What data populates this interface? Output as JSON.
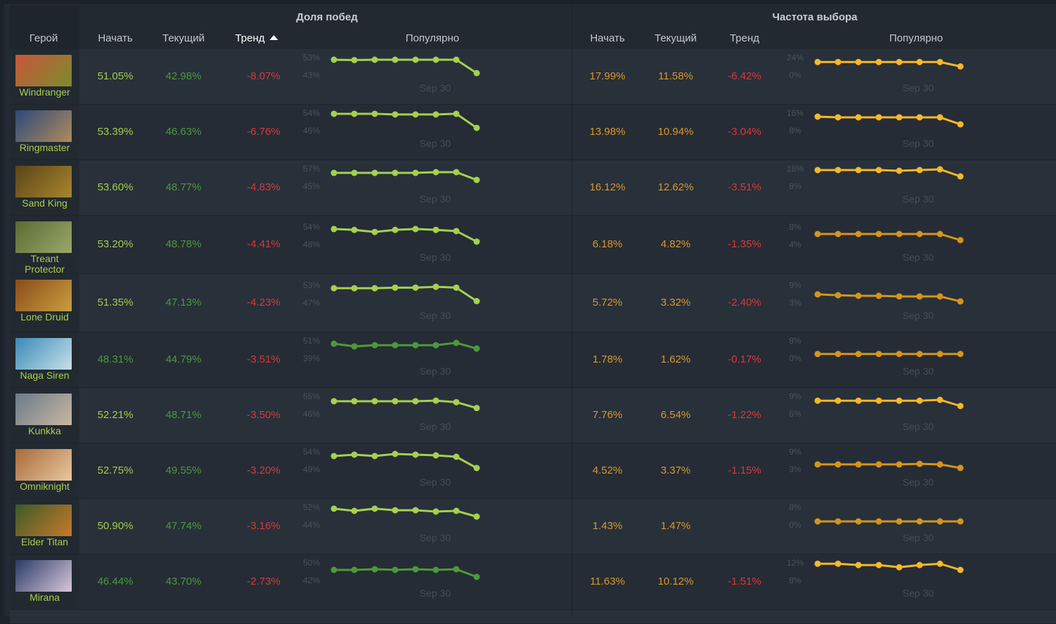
{
  "header": {
    "hero": "Герой",
    "winrate_group": "Доля побед",
    "pickrate_group": "Частота выбора",
    "start": "Начать",
    "current": "Текущий",
    "trend": "Тренд",
    "popular": "Популярно"
  },
  "colors": {
    "win_high": "#a3cc4b",
    "win_low": "#4b9a3a",
    "pick": "#d9982b",
    "trend_neg": "#d6393b",
    "spark_bright": "#f5b829",
    "spark_dark": "#d4951c",
    "line_bright": "#a6d04f",
    "line_dark": "#4b9a3a"
  },
  "sparkline_date": "Sep 30",
  "heroes": [
    {
      "name": "Windranger",
      "avatar": [
        "#c9563a",
        "#7c8b2e"
      ],
      "win": {
        "start": "51.05%",
        "current": "42.98%",
        "trend": "-8.07%",
        "ymax": "53%",
        "ymid": "43%",
        "max": 53,
        "mid": 43,
        "points": [
          51.8,
          51.6,
          51.8,
          51.8,
          51.8,
          51.8,
          51.8,
          44.2
        ]
      },
      "pick": {
        "start": "17.99%",
        "current": "11.58%",
        "trend": "-6.42%",
        "ymax": "24%",
        "ymid": "0%",
        "max": 24,
        "mid": 0,
        "points": [
          18,
          18,
          18,
          18,
          18,
          18,
          18,
          12
        ]
      },
      "startHigh": true,
      "pickBright": true
    },
    {
      "name": "Ringmaster",
      "avatar": [
        "#2a4a7a",
        "#b08a5c"
      ],
      "win": {
        "start": "53.39%",
        "current": "46.63%",
        "trend": "-6.76%",
        "ymax": "54%",
        "ymid": "46%",
        "max": 54,
        "mid": 46,
        "points": [
          53.7,
          53.7,
          53.7,
          53.4,
          53.4,
          53.4,
          53.7,
          47.3
        ]
      },
      "pick": {
        "start": "13.98%",
        "current": "10.94%",
        "trend": "-3.04%",
        "ymax": "16%",
        "ymid": "8%",
        "max": 16,
        "mid": 8,
        "points": [
          14.4,
          14.1,
          14.1,
          14.1,
          14.1,
          14.1,
          14.1,
          10.9
        ]
      },
      "startHigh": true,
      "pickBright": true
    },
    {
      "name": "Sand King",
      "avatar": [
        "#5a4418",
        "#a8862e"
      ],
      "win": {
        "start": "53.60%",
        "current": "48.77%",
        "trend": "-4.83%",
        "ymax": "57%",
        "ymid": "45%",
        "max": 57,
        "mid": 45,
        "points": [
          54.1,
          54.1,
          54.1,
          54.1,
          54.1,
          54.6,
          54.6,
          49.3
        ]
      },
      "pick": {
        "start": "16.12%",
        "current": "12.62%",
        "trend": "-3.51%",
        "ymax": "18%",
        "ymid": "8%",
        "max": 18,
        "mid": 8,
        "points": [
          17.2,
          17.2,
          17.2,
          17.2,
          16.8,
          17.2,
          17.6,
          13.6
        ]
      },
      "startHigh": true,
      "pickBright": true
    },
    {
      "name": "Treant Protector",
      "avatar": [
        "#5a6a32",
        "#9aa86a"
      ],
      "win": {
        "start": "53.20%",
        "current": "48.78%",
        "trend": "-4.41%",
        "ymax": "54%",
        "ymid": "48%",
        "max": 54,
        "mid": 48,
        "points": [
          53.3,
          53,
          52.3,
          53,
          53.3,
          53,
          52.6,
          49
        ]
      },
      "pick": {
        "start": "6.18%",
        "current": "4.82%",
        "trend": "-1.35%",
        "ymax": "8%",
        "ymid": "4%",
        "max": 8,
        "mid": 4,
        "points": [
          6.4,
          6.4,
          6.4,
          6.4,
          6.4,
          6.4,
          6.4,
          5
        ]
      },
      "startHigh": true,
      "pickBright": false,
      "tall": true
    },
    {
      "name": "Lone Druid",
      "avatar": [
        "#8a4a18",
        "#c8a040"
      ],
      "win": {
        "start": "51.35%",
        "current": "47.13%",
        "trend": "-4.23%",
        "ymax": "53%",
        "ymid": "47%",
        "max": 53,
        "mid": 47,
        "points": [
          52,
          52,
          52,
          52.2,
          52.2,
          52.5,
          52.2,
          47.6
        ]
      },
      "pick": {
        "start": "5.72%",
        "current": "3.32%",
        "trend": "-2.40%",
        "ymax": "9%",
        "ymid": "3%",
        "max": 9,
        "mid": 3,
        "points": [
          5.9,
          5.6,
          5.4,
          5.4,
          5.2,
          5.2,
          5.2,
          3.5
        ]
      },
      "startHigh": true,
      "pickBright": false,
      "tall": true
    },
    {
      "name": "Naga Siren",
      "avatar": [
        "#3a8ab8",
        "#c8e0e8"
      ],
      "win": {
        "start": "48.31%",
        "current": "44.79%",
        "trend": "-3.51%",
        "ymax": "51%",
        "ymid": "39%",
        "max": 51,
        "mid": 39,
        "points": [
          49,
          47.2,
          48,
          48,
          48,
          48,
          49.6,
          45.7
        ]
      },
      "pick": {
        "start": "1.78%",
        "current": "1.62%",
        "trend": "-0.17%",
        "ymax": "8%",
        "ymid": "0%",
        "max": 8,
        "mid": 0,
        "points": [
          2,
          2,
          2,
          2,
          2,
          2,
          2,
          2
        ]
      },
      "startHigh": false,
      "pickBright": false
    },
    {
      "name": "Kunkka",
      "avatar": [
        "#6a7a8a",
        "#c8b8a0"
      ],
      "win": {
        "start": "52.21%",
        "current": "48.71%",
        "trend": "-3.50%",
        "ymax": "55%",
        "ymid": "46%",
        "max": 55,
        "mid": 46,
        "points": [
          52.5,
          52.5,
          52.5,
          52.5,
          52.5,
          52.8,
          52,
          49
        ]
      },
      "pick": {
        "start": "7.76%",
        "current": "6.54%",
        "trend": "-1.22%",
        "ymax": "9%",
        "ymid": "5%",
        "max": 9,
        "mid": 5,
        "points": [
          8,
          8,
          8,
          8,
          8,
          8,
          8.2,
          6.8
        ]
      },
      "startHigh": true,
      "pickBright": true
    },
    {
      "name": "Omniknight",
      "avatar": [
        "#a86a3a",
        "#e8c8a0"
      ],
      "win": {
        "start": "52.75%",
        "current": "49.55%",
        "trend": "-3.20%",
        "ymax": "54%",
        "ymid": "49%",
        "max": 54,
        "mid": 49,
        "points": [
          52.8,
          53.2,
          52.8,
          53.4,
          53.2,
          53,
          52.6,
          49.4
        ]
      },
      "pick": {
        "start": "4.52%",
        "current": "3.37%",
        "trend": "-1.15%",
        "ymax": "9%",
        "ymid": "3%",
        "max": 9,
        "mid": 3,
        "points": [
          4.7,
          4.7,
          4.7,
          4.7,
          4.7,
          4.9,
          4.7,
          3.5
        ]
      },
      "startHigh": true,
      "pickBright": false
    },
    {
      "name": "Elder Titan",
      "avatar": [
        "#3a5a2a",
        "#c87a2a"
      ],
      "win": {
        "start": "50.90%",
        "current": "47.74%",
        "trend": "-3.16%",
        "ymax": "52%",
        "ymid": "44%",
        "max": 52,
        "mid": 44,
        "points": [
          51.4,
          50.4,
          51.4,
          50.7,
          50.7,
          50.1,
          50.4,
          47.8
        ]
      },
      "pick": {
        "start": "1.43%",
        "current": "1.47%",
        "trend": "",
        "ymax": "8%",
        "ymid": "0%",
        "max": 8,
        "mid": 0,
        "points": [
          1.6,
          1.6,
          1.6,
          1.6,
          1.6,
          1.6,
          1.6,
          1.6
        ]
      },
      "startHigh": true,
      "pickBright": false
    },
    {
      "name": "Mirana",
      "avatar": [
        "#2a3a6a",
        "#d8c8d8"
      ],
      "win": {
        "start": "46.44%",
        "current": "43.70%",
        "trend": "-2.73%",
        "ymax": "50%",
        "ymid": "42%",
        "max": 50,
        "mid": 42,
        "points": [
          46.8,
          46.8,
          47.1,
          46.8,
          47.1,
          46.8,
          47.1,
          43.6
        ]
      },
      "pick": {
        "start": "11.63%",
        "current": "10.12%",
        "trend": "-1.51%",
        "ymax": "12%",
        "ymid": "8%",
        "max": 12,
        "mid": 8,
        "points": [
          11.8,
          11.8,
          11.5,
          11.5,
          11,
          11.5,
          11.8,
          10.4
        ]
      },
      "startHigh": false,
      "pickBright": true
    }
  ]
}
